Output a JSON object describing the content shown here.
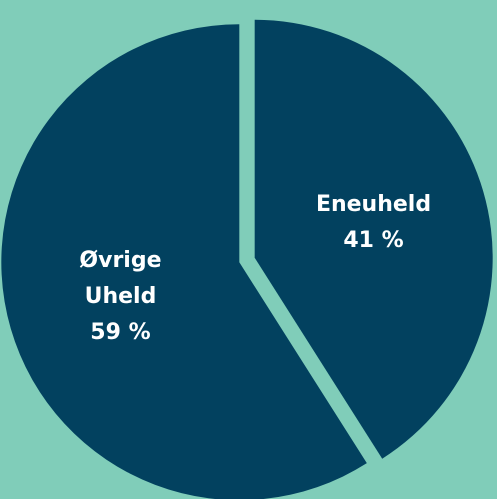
{
  "chart_data": {
    "type": "pie",
    "categories": [
      "Eneuheld",
      "Øvrige Uheld"
    ],
    "values": [
      41,
      59
    ],
    "value_labels": [
      "41 %",
      "59 %"
    ],
    "colors": [
      "#02415f",
      "#02415f"
    ],
    "background": "#80cdb9"
  }
}
